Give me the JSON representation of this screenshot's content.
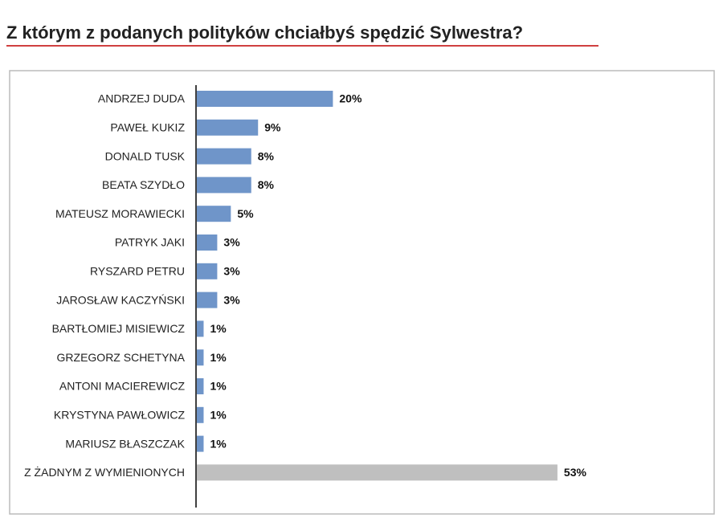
{
  "chart_data": {
    "type": "bar",
    "orientation": "horizontal",
    "title": "Z którym z podanych polityków chciałbyś spędzić Sylwestra?",
    "categories": [
      "ANDRZEJ DUDA",
      "PAWEŁ KUKIZ",
      "DONALD TUSK",
      "BEATA SZYDŁO",
      "MATEUSZ MORAWIECKI",
      "PATRYK JAKI",
      "RYSZARD PETRU",
      "JAROSŁAW KACZYŃSKI",
      "BARTŁOMIEJ MISIEWICZ",
      "GRZEGORZ SCHETYNA",
      "ANTONI MACIEREWICZ",
      "KRYSTYNA PAWŁOWICZ",
      "MARIUSZ BŁASZCZAK",
      "Z ŻADNYM Z WYMIENIONYCH"
    ],
    "values": [
      20,
      9,
      8,
      8,
      5,
      3,
      3,
      3,
      1,
      1,
      1,
      1,
      1,
      53
    ],
    "value_labels": [
      "20%",
      "9%",
      "8%",
      "8%",
      "5%",
      "3%",
      "3%",
      "3%",
      "1%",
      "1%",
      "1%",
      "1%",
      "1%",
      "53%"
    ],
    "colors": [
      "#6f95c9",
      "#6f95c9",
      "#6f95c9",
      "#6f95c9",
      "#6f95c9",
      "#6f95c9",
      "#6f95c9",
      "#6f95c9",
      "#6f95c9",
      "#6f95c9",
      "#6f95c9",
      "#6f95c9",
      "#6f95c9",
      "#bfbfbf"
    ]
  }
}
